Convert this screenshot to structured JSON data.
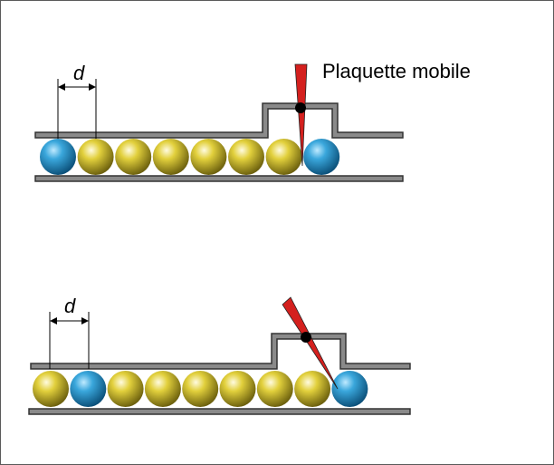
{
  "labels": {
    "movable_plate": "Plaquette mobile",
    "spacing_top": "d",
    "spacing_bottom": "d"
  },
  "colors": {
    "blue_ball": "#1f8cc4",
    "yellow_ball": "#c9b72a",
    "rail_fill": "#8a8a8a",
    "plate": "#d4201e"
  },
  "rows": [
    {
      "name": "top-row",
      "balls": [
        "blue",
        "yellow",
        "yellow",
        "yellow",
        "yellow",
        "yellow",
        "yellow",
        "blue"
      ]
    },
    {
      "name": "bottom-row",
      "balls": [
        "yellow",
        "blue",
        "yellow",
        "yellow",
        "yellow",
        "yellow",
        "yellow",
        "yellow",
        "blue"
      ]
    }
  ]
}
